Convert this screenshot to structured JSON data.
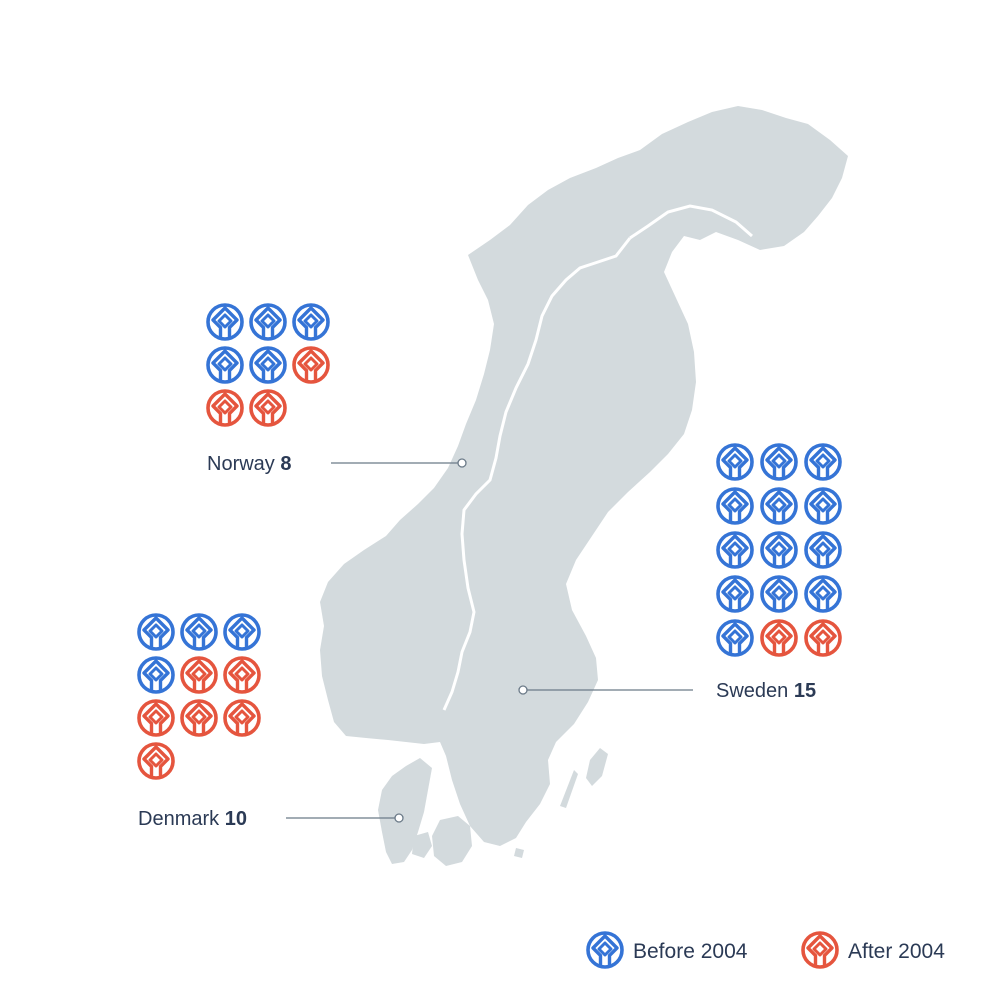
{
  "colors": {
    "before": "#3574d6",
    "after": "#e5553e",
    "land": "#d3dadd",
    "border": "#ffffff",
    "leader": "#6b7a88",
    "text": "#2b3a55"
  },
  "icon": "unesco-world-heritage-icon",
  "countries": [
    {
      "id": "norway",
      "name": "Norway",
      "count": "8",
      "before": 5,
      "after": 3
    },
    {
      "id": "sweden",
      "name": "Sweden",
      "count": "15",
      "before": 13,
      "after": 2
    },
    {
      "id": "denmark",
      "name": "Denmark",
      "count": "10",
      "before": 4,
      "after": 6
    }
  ],
  "legend": {
    "before_label": "Before 2004",
    "after_label": "After 2004"
  }
}
